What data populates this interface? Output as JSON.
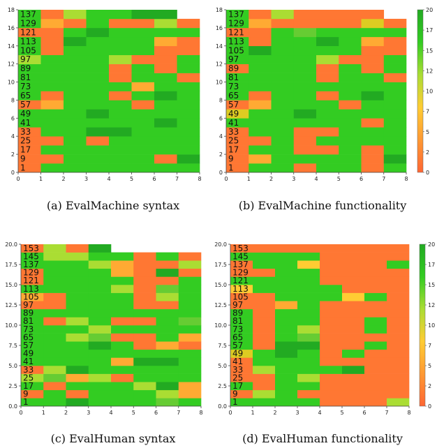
{
  "chart_data": [
    {
      "type": "heatmap",
      "caption": "(a) EvalMachine syntax",
      "xlim": [
        0,
        8
      ],
      "ylim": [
        0,
        18
      ],
      "xticks": [
        "0",
        "1",
        "2",
        "3",
        "4",
        "5",
        "6",
        "7",
        "8"
      ],
      "yticks": [
        "0",
        "2",
        "4",
        "6",
        "8",
        "10",
        "12",
        "14",
        "16",
        "18"
      ],
      "row_labels": [
        "1",
        "9",
        "17",
        "25",
        "33",
        "41",
        "49",
        "57",
        "65",
        "73",
        "81",
        "89",
        "97",
        "105",
        "113",
        "121",
        "129",
        "137"
      ],
      "grid": [
        [
          "#ff7733",
          "#33cc22",
          "#33cc22",
          "#33cc22",
          "#33cc22",
          "#33cc22",
          "#33cc22",
          "#33cc22"
        ],
        [
          "#ff7733",
          "#ff7733",
          "#33cc22",
          "#33cc22",
          "#33cc22",
          "#33cc22",
          "#ff7733",
          "#22aa22"
        ],
        [
          "#ff7733",
          "#33cc22",
          "#33cc22",
          "#33cc22",
          "#33cc22",
          "#33cc22",
          "#33cc22",
          "#33cc22"
        ],
        [
          "#ff7733",
          "#ff7733",
          "#33cc22",
          "#ff7733",
          "#33cc22",
          "#33cc22",
          "#33cc22",
          "#33cc22"
        ],
        [
          "#ff7733",
          "#33cc22",
          "#33cc22",
          "#22aa22",
          "#22aa22",
          "#33cc22",
          "#33cc22",
          "#33cc22"
        ],
        [
          "#33cc22",
          "#33cc22",
          "#33cc22",
          "#33cc22",
          "#33cc22",
          "#33cc22",
          "#22aa22",
          "#33cc22"
        ],
        [
          "#33cc22",
          "#33cc22",
          "#33cc22",
          "#22aa22",
          "#33cc22",
          "#33cc22",
          "#33cc22",
          "#33cc22"
        ],
        [
          "#ff7733",
          "#ffaa33",
          "#33cc22",
          "#33cc22",
          "#33cc22",
          "#ff7733",
          "#33cc22",
          "#33cc22"
        ],
        [
          "#33cc22",
          "#ff7733",
          "#33cc22",
          "#33cc22",
          "#ff7733",
          "#33cc22",
          "#22aa22",
          "#33cc22"
        ],
        [
          "#33cc22",
          "#33cc22",
          "#33cc22",
          "#33cc22",
          "#33cc22",
          "#ffaa33",
          "#33cc22",
          "#33cc22"
        ],
        [
          "#33cc22",
          "#33cc22",
          "#33cc22",
          "#33cc22",
          "#ff7733",
          "#33cc22",
          "#33cc22",
          "#ff7733"
        ],
        [
          "#33cc22",
          "#33cc22",
          "#33cc22",
          "#33cc22",
          "#ff7733",
          "#33cc22",
          "#ff7733",
          "#33cc22"
        ],
        [
          "#aadd33",
          "#33cc22",
          "#33cc22",
          "#33cc22",
          "#aadd33",
          "#ff7733",
          "#ff7733",
          "#33cc22"
        ],
        [
          "#33cc22",
          "#ff7733",
          "#33cc22",
          "#33cc22",
          "#33cc22",
          "#33cc22",
          "#ff7733",
          "#ff7733"
        ],
        [
          "#33cc22",
          "#ff7733",
          "#22aa22",
          "#33cc22",
          "#33cc22",
          "#33cc22",
          "#ffaa33",
          "#ff7733"
        ],
        [
          "#ff7733",
          "#ff7733",
          "#33cc22",
          "#22aa22",
          "#33cc22",
          "#33cc22",
          "#33cc22",
          "#33cc22"
        ],
        [
          "#33cc22",
          "#ffaa33",
          "#ff7733",
          "#33cc22",
          "#ff7733",
          "#ff7733",
          "#aadd33",
          "#ff7733"
        ],
        [
          "#33cc22",
          "#ff7733",
          "#aadd33",
          "#33cc22",
          "#33cc22",
          "#22aa22",
          "#22aa22",
          null
        ]
      ],
      "colorbar": null
    },
    {
      "type": "heatmap",
      "caption": "(b) EvalMachine functionality",
      "xlim": [
        0,
        8
      ],
      "ylim": [
        0,
        18
      ],
      "xticks": [
        "0",
        "1",
        "2",
        "3",
        "4",
        "5",
        "6",
        "7",
        "8"
      ],
      "yticks": [
        "0",
        "2",
        "4",
        "6",
        "8",
        "10",
        "12",
        "14",
        "16",
        "18"
      ],
      "row_labels": [
        "1",
        "9",
        "17",
        "25",
        "33",
        "41",
        "49",
        "57",
        "65",
        "73",
        "81",
        "89",
        "97",
        "105",
        "113",
        "121",
        "129",
        "137"
      ],
      "grid": [
        [
          "#ff7733",
          "#33cc22",
          "#33cc22",
          "#ff7733",
          "#33cc22",
          "#33cc22",
          "#ff7733",
          "#33cc22"
        ],
        [
          "#ff7733",
          "#ffaa33",
          "#33cc22",
          "#33cc22",
          "#33cc22",
          "#33cc22",
          "#ff7733",
          "#22aa22"
        ],
        [
          "#ff7733",
          "#33cc22",
          "#33cc22",
          "#ff7733",
          "#ff7733",
          "#33cc22",
          "#ff7733",
          "#33cc22"
        ],
        [
          "#ff7733",
          "#ff7733",
          "#33cc22",
          "#ff7733",
          "#33cc22",
          "#33cc22",
          "#33cc22",
          "#33cc22"
        ],
        [
          "#ff7733",
          "#33cc22",
          "#33cc22",
          "#ff7733",
          "#ff7733",
          "#33cc22",
          "#33cc22",
          "#33cc22"
        ],
        [
          "#33cc22",
          "#33cc22",
          "#33cc22",
          "#33cc22",
          "#33cc22",
          "#33cc22",
          "#ff7733",
          "#33cc22"
        ],
        [
          "#ddcc22",
          "#33cc22",
          "#33cc22",
          "#22aa22",
          "#33cc22",
          "#33cc22",
          "#33cc22",
          "#33cc22"
        ],
        [
          "#ff7733",
          "#ffaa33",
          "#33cc22",
          "#33cc22",
          "#33cc22",
          "#ff7733",
          "#33cc22",
          "#33cc22"
        ],
        [
          "#33cc22",
          "#ff7733",
          "#33cc22",
          "#33cc22",
          "#ff7733",
          "#33cc22",
          "#22aa22",
          "#33cc22"
        ],
        [
          "#33cc22",
          "#33cc22",
          "#33cc22",
          "#33cc22",
          "#33cc22",
          "#33cc22",
          "#33cc22",
          "#33cc22"
        ],
        [
          "#33cc22",
          "#33cc22",
          "#33cc22",
          "#33cc22",
          "#ff7733",
          "#33cc22",
          "#33cc22",
          "#ff7733"
        ],
        [
          "#ff7733",
          "#33cc22",
          "#33cc22",
          "#33cc22",
          "#ff7733",
          "#33cc22",
          "#ff7733",
          "#33cc22"
        ],
        [
          "#33cc22",
          "#33cc22",
          "#33cc22",
          "#33cc22",
          "#aadd33",
          "#ff7733",
          "#ff7733",
          "#33cc22"
        ],
        [
          "#33cc22",
          "#22aa22",
          "#33cc22",
          "#33cc22",
          "#33cc22",
          "#33cc22",
          "#ff7733",
          "#ff7733"
        ],
        [
          "#33cc22",
          "#ff7733",
          "#33cc22",
          "#33cc22",
          "#22aa22",
          "#33cc22",
          "#ffaa33",
          "#ff7733"
        ],
        [
          "#ff7733",
          "#ff7733",
          "#33cc22",
          "#66cc33",
          "#33cc22",
          "#33cc22",
          "#33cc22",
          "#33cc22"
        ],
        [
          "#33cc22",
          "#ffaa33",
          "#ff7733",
          "#ff7733",
          "#ff7733",
          "#ff7733",
          "#ddcc22",
          "#ff7733"
        ],
        [
          "#33cc22",
          "#ff7733",
          "#aadd33",
          "#ff7733",
          "#ff7733",
          "#ff7733",
          "#ff7733",
          null
        ]
      ],
      "colorbar": {
        "ticks": [
          "0",
          "2",
          "5",
          "7",
          "10",
          "12",
          "15",
          "17",
          "20"
        ],
        "colors": [
          "#ff6633",
          "#ff9933",
          "#ffcc33",
          "#aadd33",
          "#33cc22",
          "#22aa22"
        ]
      }
    },
    {
      "type": "heatmap",
      "caption": "(c) EvalHuman syntax",
      "xlim": [
        0,
        8
      ],
      "ylim": [
        0,
        20
      ],
      "xticks": [
        "0",
        "1",
        "2",
        "3",
        "4",
        "5",
        "6",
        "7",
        "8"
      ],
      "yticks": [
        "0.0",
        "2.5",
        "5.0",
        "7.5",
        "10.0",
        "12.5",
        "15.0",
        "17.5",
        "20.0"
      ],
      "row_labels": [
        "1",
        "9",
        "17",
        "25",
        "33",
        "41",
        "49",
        "57",
        "65",
        "73",
        "81",
        "89",
        "97",
        "105",
        "113",
        "121",
        "129",
        "137",
        "145",
        "153"
      ],
      "grid": [
        [
          "#33cc22",
          "#33cc22",
          "#22aa22",
          "#33cc22",
          "#33cc22",
          "#33cc22",
          "#66cc33",
          "#33cc22"
        ],
        [
          "#ff7733",
          "#33cc22",
          "#ff7733",
          "#33cc22",
          "#33cc22",
          "#33cc22",
          "#aadd33",
          "#ffaa33"
        ],
        [
          "#33cc22",
          "#ff7733",
          "#33cc22",
          "#33cc22",
          "#33cc22",
          "#aadd33",
          "#22aa22",
          "#ffaa33"
        ],
        [
          "#aadd33",
          "#66cc33",
          "#ffaa33",
          "#aadd33",
          "#ff7733",
          "#33cc22",
          "#33cc22",
          "#33cc22"
        ],
        [
          "#ff7733",
          "#aadd33",
          "#22aa22",
          "#33cc22",
          "#33cc22",
          "#33cc22",
          "#33cc22",
          "#33cc22"
        ],
        [
          "#33cc22",
          "#33cc22",
          "#33cc22",
          "#33cc22",
          "#ffaa33",
          "#22aa22",
          "#22aa22",
          "#33cc22"
        ],
        [
          "#33cc22",
          "#33cc22",
          "#33cc22",
          "#33cc22",
          "#33cc22",
          "#33cc22",
          "#33cc22",
          "#33cc22"
        ],
        [
          "#33cc22",
          "#33cc22",
          "#33cc22",
          "#22aa22",
          "#33cc22",
          "#ff7733",
          "#ffaa33",
          "#ff7733"
        ],
        [
          "#33cc22",
          "#33cc22",
          "#aadd33",
          "#66cc33",
          "#ff7733",
          "#ff7733",
          "#33cc22",
          "#ffaa33"
        ],
        [
          "#33cc22",
          "#33cc22",
          "#33cc22",
          "#aadd33",
          "#33cc22",
          "#33cc22",
          "#33cc22",
          "#33cc22"
        ],
        [
          "#33cc22",
          "#ff7733",
          "#aadd33",
          "#33cc22",
          "#ff7733",
          "#ff7733",
          "#33cc22",
          "#66cc33"
        ],
        [
          "#33cc22",
          "#33cc22",
          "#33cc22",
          "#33cc22",
          "#33cc22",
          "#33cc22",
          "#33cc22",
          "#33cc22"
        ],
        [
          "#ff7733",
          "#ff7733",
          "#33cc22",
          "#33cc22",
          "#33cc22",
          "#ff7733",
          "#ff7733",
          "#33cc22"
        ],
        [
          "#ffaa33",
          "#ff7733",
          "#33cc22",
          "#33cc22",
          "#33cc22",
          "#ff7733",
          "#aadd33",
          "#33cc22"
        ],
        [
          "#33cc22",
          "#33cc22",
          "#33cc22",
          "#33cc22",
          "#aadd33",
          "#ff7733",
          "#66cc33",
          "#33cc22"
        ],
        [
          "#ff7733",
          "#33cc22",
          "#33cc22",
          "#33cc22",
          "#33cc22",
          "#ff7733",
          "#ff7733",
          "#33cc22"
        ],
        [
          "#ff7733",
          "#33cc22",
          "#33cc22",
          "#33cc22",
          "#ffaa33",
          "#ff7733",
          "#22aa22",
          "#ff7733"
        ],
        [
          "#33cc22",
          "#33cc22",
          "#33cc22",
          "#aadd33",
          "#ffaa33",
          "#ff7733",
          "#ff7733",
          "#aadd33"
        ],
        [
          "#33cc22",
          "#aadd33",
          "#aadd33",
          "#33cc22",
          "#33cc22",
          "#ff7733",
          "#33cc22",
          "#ff7733"
        ],
        [
          "#ff7733",
          "#aadd33",
          "#ff7733",
          "#22aa22",
          null,
          null,
          null,
          null
        ]
      ],
      "colorbar": null
    },
    {
      "type": "heatmap",
      "caption": "(d) EvalHuman functionality",
      "xlim": [
        0,
        8
      ],
      "ylim": [
        0,
        20
      ],
      "xticks": [
        "0",
        "1",
        "2",
        "3",
        "4",
        "5",
        "6",
        "7",
        "8"
      ],
      "yticks": [
        "0.0",
        "2.5",
        "5.0",
        "7.5",
        "10.0",
        "12.5",
        "15.0",
        "17.5",
        "20.0"
      ],
      "row_labels": [
        "1",
        "9",
        "17",
        "25",
        "33",
        "41",
        "49",
        "57",
        "65",
        "73",
        "81",
        "89",
        "97",
        "105",
        "113",
        "121",
        "129",
        "137",
        "145",
        "153"
      ],
      "grid": [
        [
          "#33cc22",
          "#33cc22",
          "#33cc22",
          "#33cc22",
          "#ff7733",
          "#ff7733",
          "#ff7733",
          "#aadd33"
        ],
        [
          "#ff7733",
          "#aadd33",
          "#33cc22",
          "#ff7733",
          "#ff7733",
          "#ff7733",
          "#ff7733",
          "#ff7733"
        ],
        [
          "#33cc22",
          "#ff7733",
          "#33cc22",
          "#33cc22",
          "#ff7733",
          "#ff7733",
          "#ff7733",
          "#ff7733"
        ],
        [
          "#ff7733",
          "#ff7733",
          "#33cc22",
          "#aadd33",
          "#ff7733",
          "#ff7733",
          "#ff7733",
          "#ff7733"
        ],
        [
          "#ff7733",
          "#aadd33",
          "#33cc22",
          "#33cc22",
          "#33cc22",
          "#22aa22",
          "#ff7733",
          "#ff7733"
        ],
        [
          "#ff7733",
          "#33cc22",
          "#33cc22",
          "#33cc22",
          "#ff7733",
          "#ff7733",
          "#ff7733",
          "#ff7733"
        ],
        [
          "#ddcc22",
          "#33cc22",
          "#22aa22",
          "#33cc22",
          "#ff7733",
          "#33cc22",
          "#ff7733",
          "#ff7733"
        ],
        [
          "#33cc22",
          "#ff7733",
          "#22aa22",
          "#22aa22",
          "#ff7733",
          "#ff7733",
          "#33cc22",
          "#ff7733"
        ],
        [
          "#33cc22",
          "#ff7733",
          "#33cc22",
          "#66cc33",
          "#ff7733",
          "#ff7733",
          "#ff7733",
          "#ff7733"
        ],
        [
          "#33cc22",
          "#ff7733",
          "#33cc22",
          "#aadd33",
          "#ff7733",
          "#ff7733",
          "#33cc22",
          "#ff7733"
        ],
        [
          "#33cc22",
          "#ff7733",
          "#33cc22",
          "#33cc22",
          "#ff7733",
          "#ff7733",
          "#33cc22",
          "#ff7733"
        ],
        [
          "#33cc22",
          "#ff7733",
          "#33cc22",
          "#33cc22",
          "#ff7733",
          "#ff7733",
          "#ff7733",
          "#ff7733"
        ],
        [
          "#ff7733",
          "#ff7733",
          "#ffaa33",
          "#33cc22",
          "#ff7733",
          "#ff7733",
          "#ff7733",
          "#ff7733"
        ],
        [
          "#ff7733",
          "#ff7733",
          "#33cc22",
          "#33cc22",
          "#33cc22",
          "#ffcc33",
          "#33cc22",
          "#ff7733"
        ],
        [
          "#ffcc33",
          "#33cc22",
          "#33cc22",
          "#33cc22",
          "#33cc22",
          "#ff7733",
          "#ff7733",
          "#ff7733"
        ],
        [
          "#33cc22",
          "#33cc22",
          "#33cc22",
          "#33cc22",
          "#ff7733",
          "#ff7733",
          "#ff7733",
          "#ff7733"
        ],
        [
          "#ff7733",
          "#ff7733",
          "#33cc22",
          "#33cc22",
          "#ff7733",
          "#ff7733",
          "#ff7733",
          "#ff7733"
        ],
        [
          "#ff7733",
          "#33cc22",
          "#33cc22",
          "#ffcc33",
          "#ff7733",
          "#ff7733",
          "#ff7733",
          "#33cc22"
        ],
        [
          "#33cc22",
          "#33cc22",
          "#33cc22",
          "#33cc22",
          "#ff7733",
          "#ff7733",
          "#ff7733",
          "#ff7733"
        ],
        [
          "#ff7733",
          "#ff7733",
          "#ff7733",
          "#ff7733",
          "#ff7733",
          "#ff7733",
          "#ff7733",
          "#ff7733"
        ]
      ],
      "colorbar": {
        "ticks": [
          "0",
          "2",
          "5",
          "7",
          "10",
          "12",
          "15",
          "17",
          "20"
        ],
        "colors": [
          "#ff6633",
          "#ff9933",
          "#ffcc33",
          "#aadd33",
          "#33cc22",
          "#22aa22"
        ]
      }
    }
  ]
}
